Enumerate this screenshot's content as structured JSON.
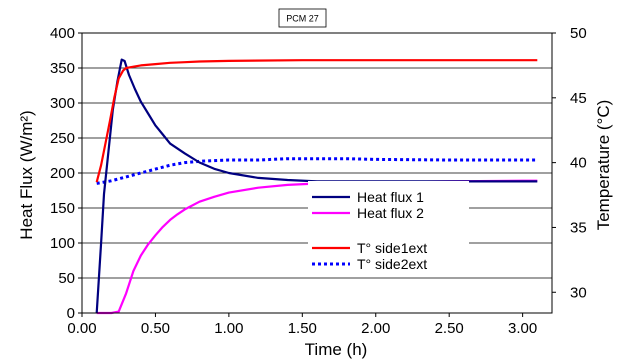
{
  "chart_data": {
    "type": "line",
    "title": "PCM 27",
    "xlabel": "Time (h)",
    "ylabel": "Heat Flux (W/m²)",
    "y2label": "Temperature (°C)",
    "xlim": [
      0,
      3.2
    ],
    "ylim": [
      0,
      400
    ],
    "y2lim": [
      28.4,
      50
    ],
    "x_ticks": [
      "0.00",
      "0.50",
      "1.00",
      "1.50",
      "2.00",
      "2.50",
      "3.00"
    ],
    "x_tick_values": [
      0,
      0.5,
      1.0,
      1.5,
      2.0,
      2.5,
      3.0
    ],
    "y_ticks": [
      "0",
      "50",
      "100",
      "150",
      "200",
      "250",
      "300",
      "350",
      "400"
    ],
    "y_tick_values": [
      0,
      50,
      100,
      150,
      200,
      250,
      300,
      350,
      400
    ],
    "y2_ticks": [
      "30",
      "35",
      "40",
      "45",
      "50"
    ],
    "y2_tick_values": [
      30,
      35,
      40,
      45,
      50
    ],
    "grid": "horizontal",
    "legend_position": "center-right",
    "series": [
      {
        "name": "Heat flux 1",
        "axis": "left",
        "color": "#000080",
        "style": "solid",
        "x": [
          0.1,
          0.13,
          0.15,
          0.18,
          0.21,
          0.24,
          0.27,
          0.29,
          0.32,
          0.36,
          0.4,
          0.45,
          0.5,
          0.55,
          0.6,
          0.7,
          0.8,
          0.9,
          1.0,
          1.2,
          1.4,
          1.6,
          1.8,
          2.0,
          2.5,
          3.0,
          3.1
        ],
        "y": [
          0,
          100,
          170,
          230,
          290,
          330,
          362,
          360,
          340,
          320,
          302,
          285,
          268,
          255,
          242,
          228,
          215,
          206,
          200,
          193,
          190,
          188,
          188,
          188,
          188,
          188,
          188
        ]
      },
      {
        "name": "Heat flux 2",
        "axis": "left",
        "color": "#ff00ff",
        "style": "solid",
        "x": [
          0.1,
          0.15,
          0.2,
          0.25,
          0.3,
          0.35,
          0.4,
          0.45,
          0.5,
          0.55,
          0.6,
          0.65,
          0.7,
          0.8,
          0.9,
          1.0,
          1.2,
          1.4,
          1.6,
          1.8,
          2.0,
          2.5,
          3.0,
          3.1
        ],
        "y": [
          0,
          0,
          0,
          2,
          28,
          60,
          82,
          98,
          111,
          123,
          133,
          141,
          148,
          159,
          166,
          172,
          179,
          183,
          185,
          187,
          187,
          188,
          189,
          189
        ]
      },
      {
        "name": "T° side1ext",
        "axis": "right",
        "color": "#ff0000",
        "style": "solid",
        "x": [
          0.1,
          0.13,
          0.16,
          0.19,
          0.22,
          0.25,
          0.28,
          0.3,
          0.35,
          0.4,
          0.5,
          0.6,
          0.7,
          0.8,
          1.0,
          1.5,
          2.0,
          2.5,
          3.0,
          3.1
        ],
        "y": [
          38.5,
          39.8,
          41.5,
          43.2,
          45.0,
          46.5,
          47.1,
          47.3,
          47.4,
          47.5,
          47.6,
          47.7,
          47.75,
          47.8,
          47.85,
          47.9,
          47.9,
          47.9,
          47.9,
          47.9
        ]
      },
      {
        "name": "T° side2ext",
        "axis": "right",
        "color": "#0000ff",
        "style": "dotted",
        "x": [
          0.1,
          0.2,
          0.3,
          0.4,
          0.5,
          0.6,
          0.7,
          0.8,
          1.0,
          1.2,
          1.4,
          1.6,
          1.8,
          2.0,
          2.5,
          3.0,
          3.1
        ],
        "y": [
          38.4,
          38.6,
          38.9,
          39.2,
          39.5,
          39.8,
          40.0,
          40.1,
          40.2,
          40.2,
          40.3,
          40.3,
          40.3,
          40.25,
          40.2,
          40.2,
          40.2
        ]
      }
    ]
  }
}
